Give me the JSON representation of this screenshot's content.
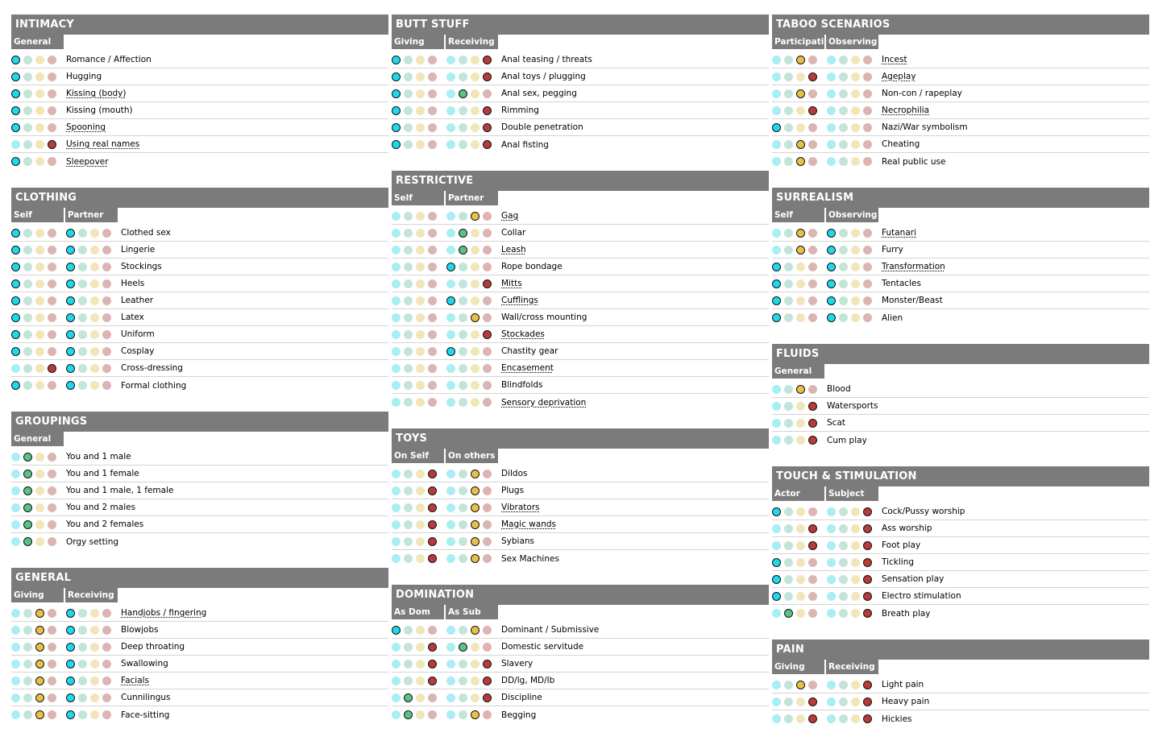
{
  "columns": [
    [
      {
        "title": "INTIMACY",
        "subheaders": [
          "General"
        ],
        "rows": [
          {
            "label": "Romance / Affection",
            "sel": [
              0
            ],
            "dotted": false
          },
          {
            "label": "Hugging",
            "sel": [
              0
            ],
            "dotted": false
          },
          {
            "label": "Kissing (body)",
            "sel": [
              0
            ],
            "dotted": true
          },
          {
            "label": "Kissing (mouth)",
            "sel": [
              0
            ],
            "dotted": false
          },
          {
            "label": "Spooning",
            "sel": [
              0
            ],
            "dotted": true
          },
          {
            "label": "Using real names",
            "sel": [
              3
            ],
            "dotted": true
          },
          {
            "label": "Sleepover",
            "sel": [
              0
            ],
            "dotted": true
          }
        ]
      },
      {
        "title": "CLOTHING",
        "subheaders": [
          "Self",
          "Partner"
        ],
        "rows": [
          {
            "label": "Clothed sex",
            "sel": [
              0,
              0
            ],
            "dotted": false
          },
          {
            "label": "Lingerie",
            "sel": [
              0,
              0
            ],
            "dotted": false
          },
          {
            "label": "Stockings",
            "sel": [
              0,
              0
            ],
            "dotted": false
          },
          {
            "label": "Heels",
            "sel": [
              0,
              0
            ],
            "dotted": false
          },
          {
            "label": "Leather",
            "sel": [
              0,
              0
            ],
            "dotted": false
          },
          {
            "label": "Latex",
            "sel": [
              0,
              0
            ],
            "dotted": false
          },
          {
            "label": "Uniform",
            "sel": [
              0,
              0
            ],
            "dotted": false
          },
          {
            "label": "Cosplay",
            "sel": [
              0,
              0
            ],
            "dotted": false
          },
          {
            "label": "Cross-dressing",
            "sel": [
              3,
              0
            ],
            "dotted": false
          },
          {
            "label": "Formal clothing",
            "sel": [
              0,
              0
            ],
            "dotted": false
          }
        ]
      },
      {
        "title": "GROUPINGS",
        "subheaders": [
          "General"
        ],
        "rows": [
          {
            "label": "You and 1 male",
            "sel": [
              1
            ],
            "dotted": false
          },
          {
            "label": "You and 1 female",
            "sel": [
              1
            ],
            "dotted": false
          },
          {
            "label": "You and 1 male, 1 female",
            "sel": [
              1
            ],
            "dotted": false
          },
          {
            "label": "You and 2 males",
            "sel": [
              1
            ],
            "dotted": false
          },
          {
            "label": "You and 2 females",
            "sel": [
              1
            ],
            "dotted": false
          },
          {
            "label": "Orgy setting",
            "sel": [
              1
            ],
            "dotted": false
          }
        ]
      },
      {
        "title": "GENERAL",
        "subheaders": [
          "Giving",
          "Receiving"
        ],
        "rows": [
          {
            "label": "Handjobs / fingering",
            "sel": [
              2,
              0
            ],
            "dotted": true
          },
          {
            "label": "Blowjobs",
            "sel": [
              2,
              0
            ],
            "dotted": false
          },
          {
            "label": "Deep throating",
            "sel": [
              2,
              0
            ],
            "dotted": false
          },
          {
            "label": "Swallowing",
            "sel": [
              2,
              0
            ],
            "dotted": false
          },
          {
            "label": "Facials",
            "sel": [
              2,
              0
            ],
            "dotted": true
          },
          {
            "label": "Cunnilingus",
            "sel": [
              2,
              0
            ],
            "dotted": false
          },
          {
            "label": "Face-sitting",
            "sel": [
              2,
              0
            ],
            "dotted": false
          }
        ]
      }
    ],
    [
      {
        "title": "BUTT STUFF",
        "subheaders": [
          "Giving",
          "Receiving"
        ],
        "rows": [
          {
            "label": "Anal teasing / threats",
            "sel": [
              0,
              3
            ],
            "dotted": false
          },
          {
            "label": "Anal toys / plugging",
            "sel": [
              0,
              3
            ],
            "dotted": false
          },
          {
            "label": "Anal sex, pegging",
            "sel": [
              0,
              1
            ],
            "dotted": false
          },
          {
            "label": "Rimming",
            "sel": [
              0,
              3
            ],
            "dotted": false
          },
          {
            "label": "Double penetration",
            "sel": [
              0,
              3
            ],
            "dotted": false
          },
          {
            "label": "Anal fisting",
            "sel": [
              0,
              3
            ],
            "dotted": false
          }
        ]
      },
      {
        "title": "RESTRICTIVE",
        "subheaders": [
          "Self",
          "Partner"
        ],
        "rows": [
          {
            "label": "Gag",
            "sel": [
              -1,
              2
            ],
            "dotted": true
          },
          {
            "label": "Collar",
            "sel": [
              -1,
              1
            ],
            "dotted": false
          },
          {
            "label": "Leash",
            "sel": [
              -1,
              1
            ],
            "dotted": true
          },
          {
            "label": "Rope bondage",
            "sel": [
              -1,
              0
            ],
            "dotted": false
          },
          {
            "label": "Mitts",
            "sel": [
              -1,
              3
            ],
            "dotted": true
          },
          {
            "label": "Cufflings",
            "sel": [
              -1,
              0
            ],
            "dotted": true
          },
          {
            "label": "Wall/cross mounting",
            "sel": [
              -1,
              2
            ],
            "dotted": false
          },
          {
            "label": "Stockades",
            "sel": [
              -1,
              3
            ],
            "dotted": true
          },
          {
            "label": "Chastity gear",
            "sel": [
              -1,
              0
            ],
            "dotted": false
          },
          {
            "label": "Encasement",
            "sel": [
              -1,
              -1
            ],
            "dotted": true
          },
          {
            "label": "Blindfolds",
            "sel": [
              -1,
              -1
            ],
            "dotted": false
          },
          {
            "label": "Sensory deprivation",
            "sel": [
              -1,
              -1
            ],
            "dotted": true
          }
        ]
      },
      {
        "title": "TOYS",
        "subheaders": [
          "On Self",
          "On others"
        ],
        "rows": [
          {
            "label": "Dildos",
            "sel": [
              3,
              2
            ],
            "dotted": false
          },
          {
            "label": "Plugs",
            "sel": [
              3,
              2
            ],
            "dotted": false
          },
          {
            "label": "Vibrators",
            "sel": [
              3,
              2
            ],
            "dotted": true
          },
          {
            "label": "Magic wands",
            "sel": [
              3,
              2
            ],
            "dotted": true
          },
          {
            "label": "Sybians",
            "sel": [
              3,
              2
            ],
            "dotted": false
          },
          {
            "label": "Sex Machines",
            "sel": [
              3,
              2
            ],
            "dotted": false
          }
        ]
      },
      {
        "title": "DOMINATION",
        "subheaders": [
          "As Dom",
          "As Sub"
        ],
        "rows": [
          {
            "label": "Dominant / Submissive",
            "sel": [
              0,
              2
            ],
            "dotted": false
          },
          {
            "label": "Domestic servitude",
            "sel": [
              3,
              1
            ],
            "dotted": false
          },
          {
            "label": "Slavery",
            "sel": [
              3,
              3
            ],
            "dotted": false
          },
          {
            "label": "DD/lg, MD/lb",
            "sel": [
              3,
              3
            ],
            "dotted": false
          },
          {
            "label": "Discipline",
            "sel": [
              1,
              3
            ],
            "dotted": false
          },
          {
            "label": "Begging",
            "sel": [
              1,
              2
            ],
            "dotted": false
          }
        ]
      }
    ],
    [
      {
        "title": "TABOO SCENARIOS",
        "subheaders": [
          "Participating",
          "Observing"
        ],
        "rows": [
          {
            "label": "Incest",
            "sel": [
              2,
              -1
            ],
            "dotted": true
          },
          {
            "label": "Ageplay",
            "sel": [
              3,
              -1
            ],
            "dotted": true
          },
          {
            "label": "Non-con / rapeplay",
            "sel": [
              2,
              -1
            ],
            "dotted": false
          },
          {
            "label": "Necrophilia",
            "sel": [
              3,
              -1
            ],
            "dotted": true
          },
          {
            "label": "Nazi/War symbolism",
            "sel": [
              0,
              -1
            ],
            "dotted": false
          },
          {
            "label": "Cheating",
            "sel": [
              2,
              -1
            ],
            "dotted": false
          },
          {
            "label": "Real public use",
            "sel": [
              2,
              -1
            ],
            "dotted": false
          }
        ]
      },
      {
        "title": "SURREALISM",
        "subheaders": [
          "Self",
          "Observing"
        ],
        "rows": [
          {
            "label": "Futanari",
            "sel": [
              2,
              0
            ],
            "dotted": true
          },
          {
            "label": "Furry",
            "sel": [
              2,
              0
            ],
            "dotted": false
          },
          {
            "label": "Transformation",
            "sel": [
              0,
              0
            ],
            "dotted": true
          },
          {
            "label": "Tentacles",
            "sel": [
              0,
              0
            ],
            "dotted": false
          },
          {
            "label": "Monster/Beast",
            "sel": [
              0,
              0
            ],
            "dotted": false
          },
          {
            "label": "Alien",
            "sel": [
              0,
              0
            ],
            "dotted": false
          }
        ]
      },
      {
        "title": "FLUIDS",
        "subheaders": [
          "General"
        ],
        "rows": [
          {
            "label": "Blood",
            "sel": [
              2
            ],
            "dotted": false
          },
          {
            "label": "Watersports",
            "sel": [
              3
            ],
            "dotted": false
          },
          {
            "label": "Scat",
            "sel": [
              3
            ],
            "dotted": false
          },
          {
            "label": "Cum play",
            "sel": [
              3
            ],
            "dotted": false
          }
        ]
      },
      {
        "title": "TOUCH & STIMULATION",
        "subheaders": [
          "Actor",
          "Subject"
        ],
        "rows": [
          {
            "label": "Cock/Pussy worship",
            "sel": [
              0,
              3
            ],
            "dotted": false
          },
          {
            "label": "Ass worship",
            "sel": [
              3,
              3
            ],
            "dotted": false
          },
          {
            "label": "Foot play",
            "sel": [
              3,
              3
            ],
            "dotted": false
          },
          {
            "label": "Tickling",
            "sel": [
              0,
              3
            ],
            "dotted": false
          },
          {
            "label": "Sensation play",
            "sel": [
              0,
              3
            ],
            "dotted": false
          },
          {
            "label": "Electro stimulation",
            "sel": [
              0,
              3
            ],
            "dotted": false
          },
          {
            "label": "Breath play",
            "sel": [
              1,
              3
            ],
            "dotted": false
          }
        ]
      },
      {
        "title": "PAIN",
        "subheaders": [
          "Giving",
          "Receiving"
        ],
        "rows": [
          {
            "label": "Light pain",
            "sel": [
              2,
              3
            ],
            "dotted": false
          },
          {
            "label": "Heavy pain",
            "sel": [
              3,
              3
            ],
            "dotted": false
          },
          {
            "label": "Hickies",
            "sel": [
              3,
              3
            ],
            "dotted": false
          }
        ]
      }
    ]
  ]
}
